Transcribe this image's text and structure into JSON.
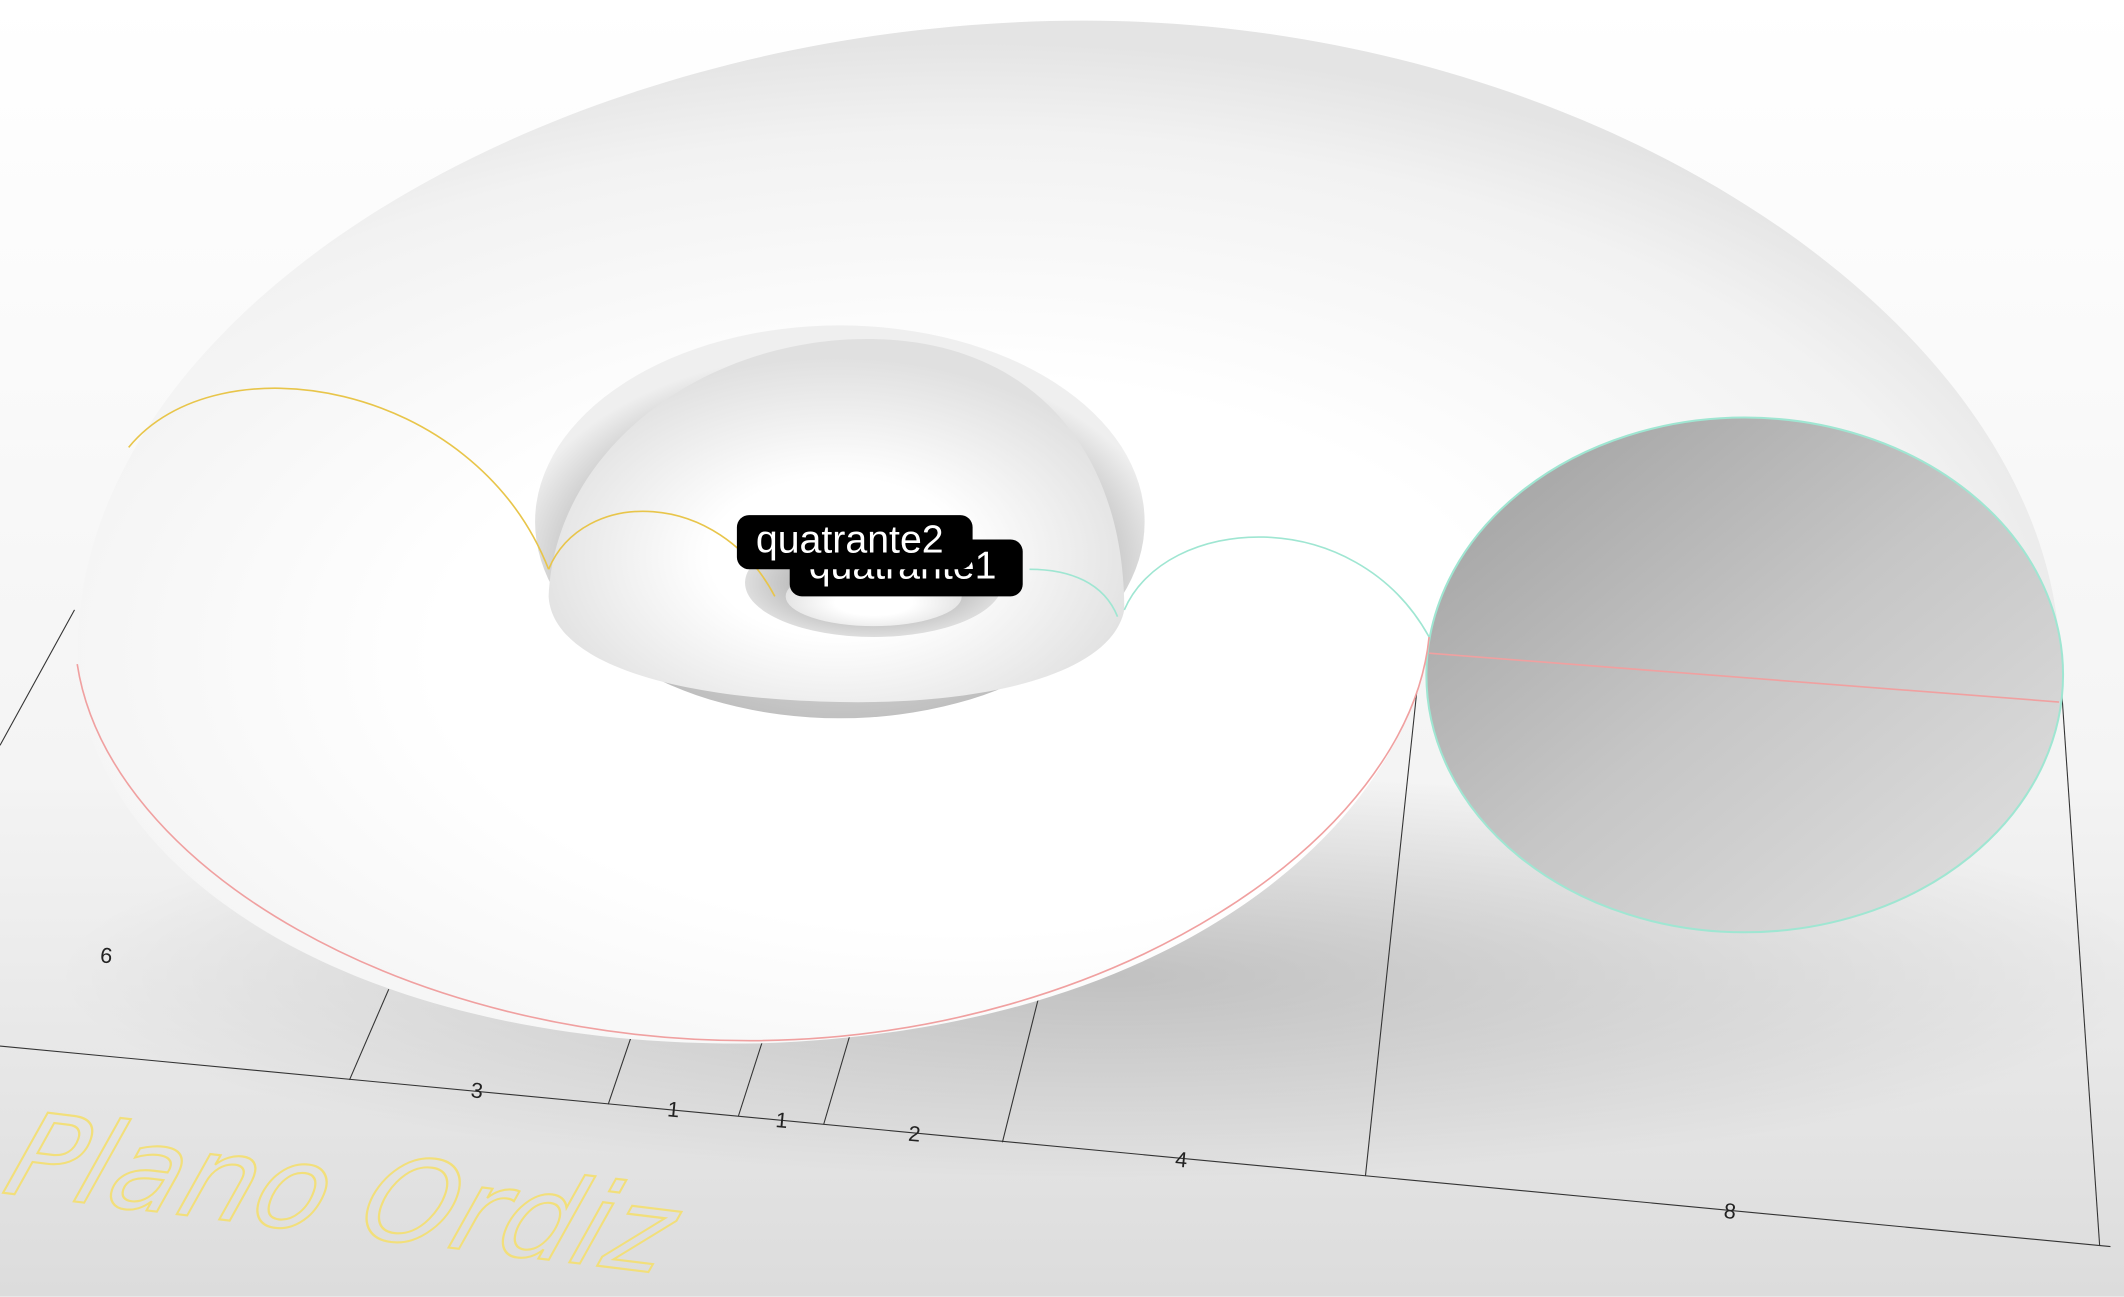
{
  "viewport": {
    "tags": [
      "quatrante2",
      "quatrante1"
    ],
    "dimensions": [
      6,
      3,
      1,
      1,
      2,
      4,
      8
    ],
    "plane_label": "Plano Ordiz"
  }
}
